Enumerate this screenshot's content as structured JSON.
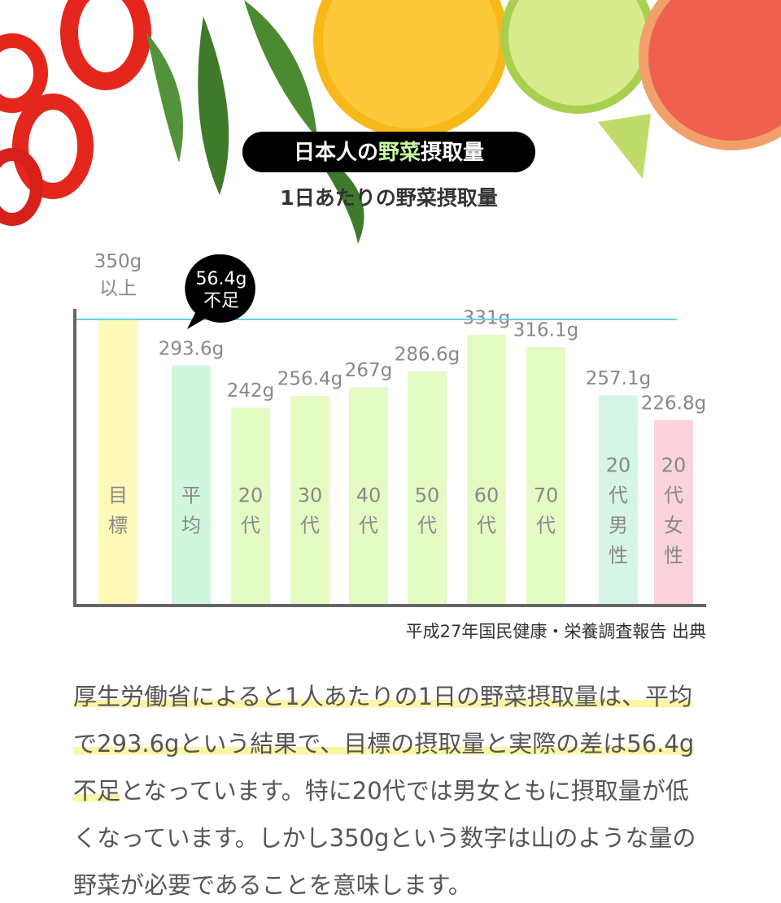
{
  "header": {
    "title_parts": [
      "日本人の",
      "野菜",
      "摂取量"
    ],
    "subtitle": "1日あたりの野菜摂取量"
  },
  "chart_data": {
    "type": "bar",
    "categories": [
      "目標",
      "平均",
      "20代",
      "30代",
      "40代",
      "50代",
      "60代",
      "70代",
      "20代男性",
      "20代女性"
    ],
    "values": [
      350,
      293.6,
      242,
      256.4,
      267,
      286.6,
      331,
      316.1,
      257.1,
      226.8
    ],
    "value_labels": [
      "350g\n以上",
      "293.6g",
      "242g",
      "256.4g",
      "267g",
      "286.6g",
      "331g",
      "316.1g",
      "257.1g",
      "226.8g"
    ],
    "colors": [
      "#fdf9b8",
      "#d0f7dd",
      "#e4fcc4",
      "#e4fcc4",
      "#e4fcc4",
      "#e4fcc4",
      "#e4fcc4",
      "#e4fcc4",
      "#d5f6e6",
      "#fad3dc"
    ],
    "ylim": [
      0,
      360
    ],
    "annotation": "56.4g\n不足",
    "source": "平成27年国民健康・栄養調査報告 出典"
  },
  "paragraph": [
    [
      {
        "text": "厚生労働省によると1人あたりの1日の野菜摂取量は、平均",
        "highlight": true
      }
    ],
    [
      {
        "text": "で293.6gという結果で、目標の摂取量と実際の差は56.4g",
        "highlight": true
      }
    ],
    [
      {
        "text": "不足",
        "highlight": true
      },
      {
        "text": "となっています。特に20代では男女ともに摂取量が低"
      }
    ],
    [
      {
        "text": "くなっています。しかし350gという数字は山のような量の"
      }
    ],
    [
      {
        "text": "野菜が必要であることを意味します。"
      }
    ]
  ]
}
